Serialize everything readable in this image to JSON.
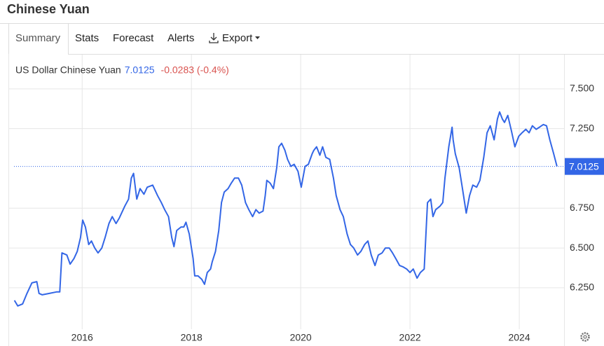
{
  "page": {
    "title": "Chinese Yuan",
    "tabs": [
      "Summary",
      "Stats",
      "Forecast",
      "Alerts",
      "Export"
    ]
  },
  "chart_data": {
    "type": "line",
    "change_label": "-0.0283 (-0.4%)",
    "x": [
      2014.76,
      2014.82,
      2014.91,
      2014.99,
      2015.08,
      2015.17,
      2015.21,
      2015.27,
      2015.4,
      2015.53,
      2015.59,
      2015.63,
      2015.72,
      2015.78,
      2015.85,
      2015.91,
      2015.97,
      2016.01,
      2016.06,
      2016.12,
      2016.17,
      2016.23,
      2016.29,
      2016.36,
      2016.42,
      2016.49,
      2016.55,
      2016.62,
      2016.68,
      2016.78,
      2016.85,
      2016.9,
      2016.94,
      2017.0,
      2017.06,
      2017.13,
      2017.19,
      2017.29,
      2017.38,
      2017.45,
      2017.51,
      2017.58,
      2017.64,
      2017.68,
      2017.73,
      2017.81,
      2017.86,
      2017.9,
      2017.96,
      2018.03,
      2018.06,
      2018.12,
      2018.19,
      2018.24,
      2018.29,
      2018.35,
      2018.38,
      2018.44,
      2018.5,
      2018.55,
      2018.6,
      2018.67,
      2018.73,
      2018.79,
      2018.86,
      2018.92,
      2018.99,
      2019.05,
      2019.12,
      2019.18,
      2019.24,
      2019.31,
      2019.35,
      2019.38,
      2019.44,
      2019.5,
      2019.56,
      2019.6,
      2019.65,
      2019.71,
      2019.76,
      2019.82,
      2019.88,
      2019.95,
      2020.01,
      2020.08,
      2020.14,
      2020.21,
      2020.24,
      2020.29,
      2020.35,
      2020.4,
      2020.46,
      2020.53,
      2020.6,
      2020.65,
      2020.72,
      2020.78,
      2020.85,
      2020.91,
      2020.97,
      2021.04,
      2021.1,
      2021.17,
      2021.23,
      2021.29,
      2021.36,
      2021.42,
      2021.49,
      2021.55,
      2021.62,
      2021.68,
      2021.74,
      2021.81,
      2021.87,
      2021.94,
      2022.0,
      2022.06,
      2022.13,
      2022.19,
      2022.26,
      2022.32,
      2022.38,
      2022.42,
      2022.47,
      2022.55,
      2022.6,
      2022.64,
      2022.71,
      2022.77,
      2022.79,
      2022.83,
      2022.9,
      2022.96,
      2023.03,
      2023.09,
      2023.15,
      2023.22,
      2023.28,
      2023.35,
      2023.41,
      2023.47,
      2023.54,
      2023.6,
      2023.64,
      2023.69,
      2023.73,
      2023.79,
      2023.86,
      2023.92,
      2023.99,
      2024.05,
      2024.12,
      2024.18,
      2024.24,
      2024.31,
      2024.37,
      2024.44,
      2024.5,
      2024.56,
      2024.63,
      2024.69
    ],
    "series": [
      {
        "name": "US Dollar Chinese Yuan",
        "color": "#3366e6",
        "values": [
          6.171,
          6.136,
          6.149,
          6.215,
          6.281,
          6.289,
          6.215,
          6.206,
          6.215,
          6.224,
          6.224,
          6.469,
          6.456,
          6.399,
          6.434,
          6.478,
          6.566,
          6.675,
          6.632,
          6.522,
          6.544,
          6.5,
          6.469,
          6.5,
          6.566,
          6.654,
          6.697,
          6.654,
          6.689,
          6.763,
          6.807,
          6.939,
          6.969,
          6.807,
          6.873,
          6.838,
          6.882,
          6.895,
          6.829,
          6.785,
          6.741,
          6.697,
          6.566,
          6.509,
          6.61,
          6.632,
          6.632,
          6.662,
          6.588,
          6.434,
          6.325,
          6.325,
          6.303,
          6.272,
          6.346,
          6.368,
          6.412,
          6.478,
          6.61,
          6.785,
          6.851,
          6.873,
          6.908,
          6.939,
          6.939,
          6.895,
          6.785,
          6.741,
          6.697,
          6.741,
          6.719,
          6.732,
          6.829,
          6.925,
          6.908,
          6.873,
          7.004,
          7.136,
          7.158,
          7.114,
          7.057,
          7.013,
          7.026,
          6.982,
          6.882,
          7.013,
          7.026,
          7.092,
          7.114,
          7.136,
          7.083,
          7.136,
          7.07,
          7.057,
          6.939,
          6.829,
          6.741,
          6.697,
          6.588,
          6.522,
          6.5,
          6.456,
          6.478,
          6.522,
          6.544,
          6.456,
          6.39,
          6.456,
          6.469,
          6.5,
          6.5,
          6.469,
          6.434,
          6.39,
          6.382,
          6.368,
          6.346,
          6.368,
          6.311,
          6.346,
          6.368,
          6.785,
          6.807,
          6.697,
          6.741,
          6.763,
          6.785,
          6.939,
          7.136,
          7.259,
          7.18,
          7.092,
          7.004,
          6.873,
          6.719,
          6.829,
          6.895,
          6.882,
          6.925,
          7.07,
          7.224,
          7.268,
          7.18,
          7.311,
          7.355,
          7.311,
          7.289,
          7.333,
          7.232,
          7.136,
          7.202,
          7.224,
          7.246,
          7.224,
          7.268,
          7.246,
          7.259,
          7.276,
          7.268,
          7.18,
          7.092,
          7.0125
        ]
      }
    ],
    "xlim": [
      2014.65,
      2024.82
    ],
    "ylim": [
      5.99,
      7.715
    ],
    "xticks": [
      2016,
      2018,
      2020,
      2022,
      2024
    ],
    "yticks": [
      {
        "value": 6.25,
        "label": "6.250"
      },
      {
        "value": 6.5,
        "label": "6.500"
      },
      {
        "value": 6.75,
        "label": "6.750"
      },
      {
        "value": 7.25,
        "label": "7.250"
      },
      {
        "value": 7.5,
        "label": "7.500"
      }
    ],
    "grid": true,
    "change_color": "#d9534f"
  }
}
